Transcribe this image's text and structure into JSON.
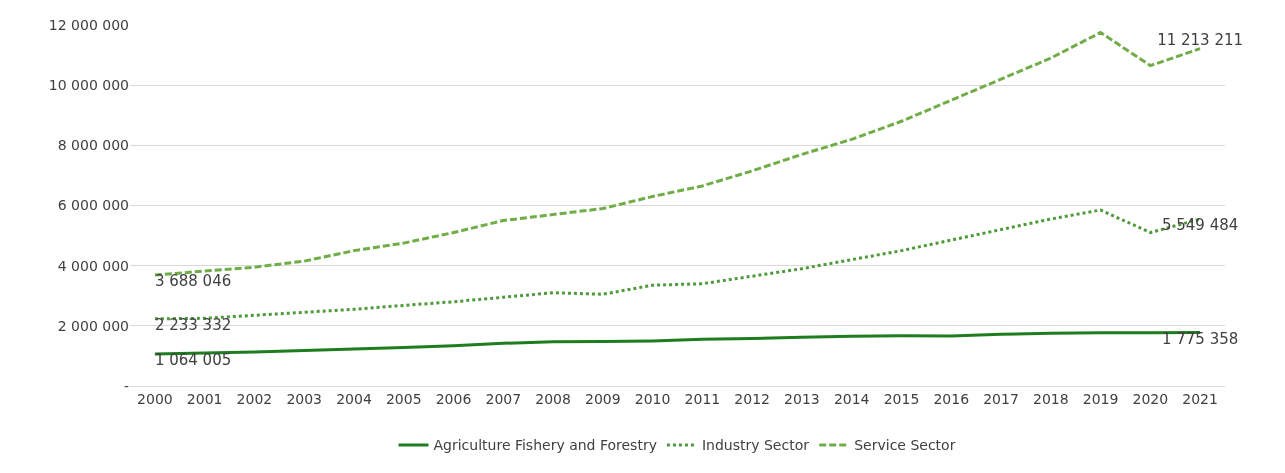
{
  "chart_data": {
    "type": "line",
    "categories": [
      "2000",
      "2001",
      "2002",
      "2003",
      "2004",
      "2005",
      "2006",
      "2007",
      "2008",
      "2009",
      "2010",
      "2011",
      "2012",
      "2013",
      "2014",
      "2015",
      "2016",
      "2017",
      "2018",
      "2019",
      "2020",
      "2021"
    ],
    "series": [
      {
        "name": "Agriculture Fishery and Forestry",
        "color": "#1e7d1e",
        "line_style": "solid",
        "values": [
          1064005,
          1100000,
          1130000,
          1180000,
          1230000,
          1280000,
          1340000,
          1420000,
          1470000,
          1480000,
          1500000,
          1550000,
          1580000,
          1620000,
          1650000,
          1670000,
          1660000,
          1720000,
          1750000,
          1770000,
          1770000,
          1775358
        ],
        "value_labels": [
          "1 064 005",
          null,
          null,
          null,
          null,
          null,
          null,
          null,
          null,
          null,
          null,
          null,
          null,
          null,
          null,
          null,
          null,
          null,
          null,
          null,
          null,
          "1 775 358"
        ]
      },
      {
        "name": "Industry Sector",
        "color": "#4e9a3a",
        "line_style": "dotted",
        "values": [
          2233332,
          2250000,
          2350000,
          2450000,
          2550000,
          2680000,
          2800000,
          2950000,
          3100000,
          3050000,
          3350000,
          3400000,
          3650000,
          3900000,
          4200000,
          4500000,
          4850000,
          5200000,
          5550000,
          5850000,
          5100000,
          5549484
        ],
        "value_labels": [
          "2 233 332",
          null,
          null,
          null,
          null,
          null,
          null,
          null,
          null,
          null,
          null,
          null,
          null,
          null,
          null,
          null,
          null,
          null,
          null,
          null,
          null,
          "5 549 484"
        ]
      },
      {
        "name": "Service Sector",
        "color": "#70ad47",
        "line_style": "dashed",
        "values": [
          3688046,
          3820000,
          3950000,
          4150000,
          4500000,
          4750000,
          5100000,
          5500000,
          5700000,
          5900000,
          6300000,
          6650000,
          7150000,
          7700000,
          8200000,
          8800000,
          9500000,
          10200000,
          10900000,
          11750000,
          10650000,
          11213211
        ],
        "value_labels": [
          "3 688 046",
          null,
          null,
          null,
          null,
          null,
          null,
          null,
          null,
          null,
          null,
          null,
          null,
          null,
          null,
          null,
          null,
          null,
          null,
          null,
          null,
          "11 213 211"
        ]
      }
    ],
    "ylim": [
      0,
      12000000
    ],
    "yticks": [
      {
        "value": 0,
        "label": "-"
      },
      {
        "value": 2000000,
        "label": "2 000 000"
      },
      {
        "value": 4000000,
        "label": "4 000 000"
      },
      {
        "value": 6000000,
        "label": "6 000 000"
      },
      {
        "value": 8000000,
        "label": "8 000 000"
      },
      {
        "value": 10000000,
        "label": "10 000 000"
      },
      {
        "value": 12000000,
        "label": "12 000 000"
      }
    ],
    "grid": "y",
    "legend": "bottom",
    "marker": "none"
  }
}
